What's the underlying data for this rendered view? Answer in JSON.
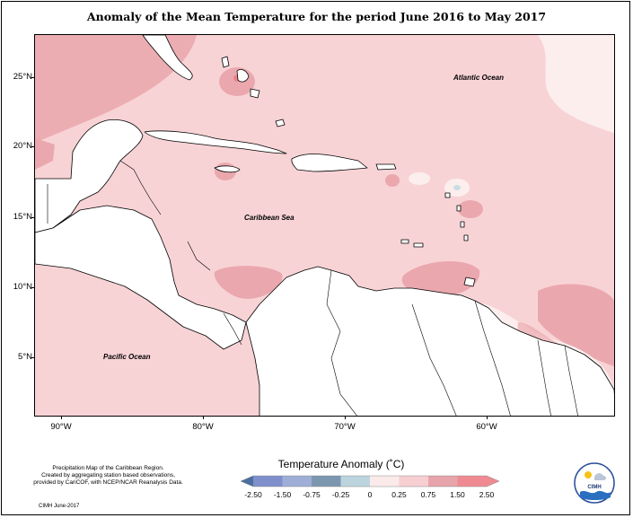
{
  "title": "Anomaly of the Mean Temperature for the period June 2016 to May 2017",
  "axes": {
    "lat_labels": [
      "25°N",
      "20°N",
      "15°N",
      "10°N",
      "5°N"
    ],
    "lon_labels": [
      "90°W",
      "80°W",
      "70°W",
      "60°W"
    ]
  },
  "labels": {
    "atlantic": "Atlantic Ocean",
    "caribbean": "Caribbean Sea",
    "pacific": "Pacific Ocean"
  },
  "legend": {
    "title": "Temperature Anomaly (˚C)",
    "ticks": [
      "-2.50",
      "-1.50",
      "-0.75",
      "-0.25",
      "0",
      "0.25",
      "0.75",
      "1.50",
      "2.50"
    ],
    "colors": [
      "#4a6f9e",
      "#7f8fcc",
      "#9eaed7",
      "#7b97b0",
      "#bcd4de",
      "#fbeaea",
      "#f7cfd3",
      "#e7a4aa",
      "#f08a92"
    ]
  },
  "credit": {
    "line1": "Precipitation Map of the Caribbean Region.",
    "line2": "Created by aggregating station based observations,",
    "line3": "provided by CariCOF, with NCEP/NCAR Reanalysis Data.",
    "date": "CIMH June-2017"
  },
  "logo": {
    "text": "CIMH"
  },
  "colors": {
    "base_anomaly": "#f8d3d6",
    "warm_anomaly": "#eaa8ae",
    "hot_anomaly": "#e88089",
    "light_anomaly": "#fdeeee",
    "cool_anomaly": "#c9dde4",
    "land": "#ffffff"
  }
}
